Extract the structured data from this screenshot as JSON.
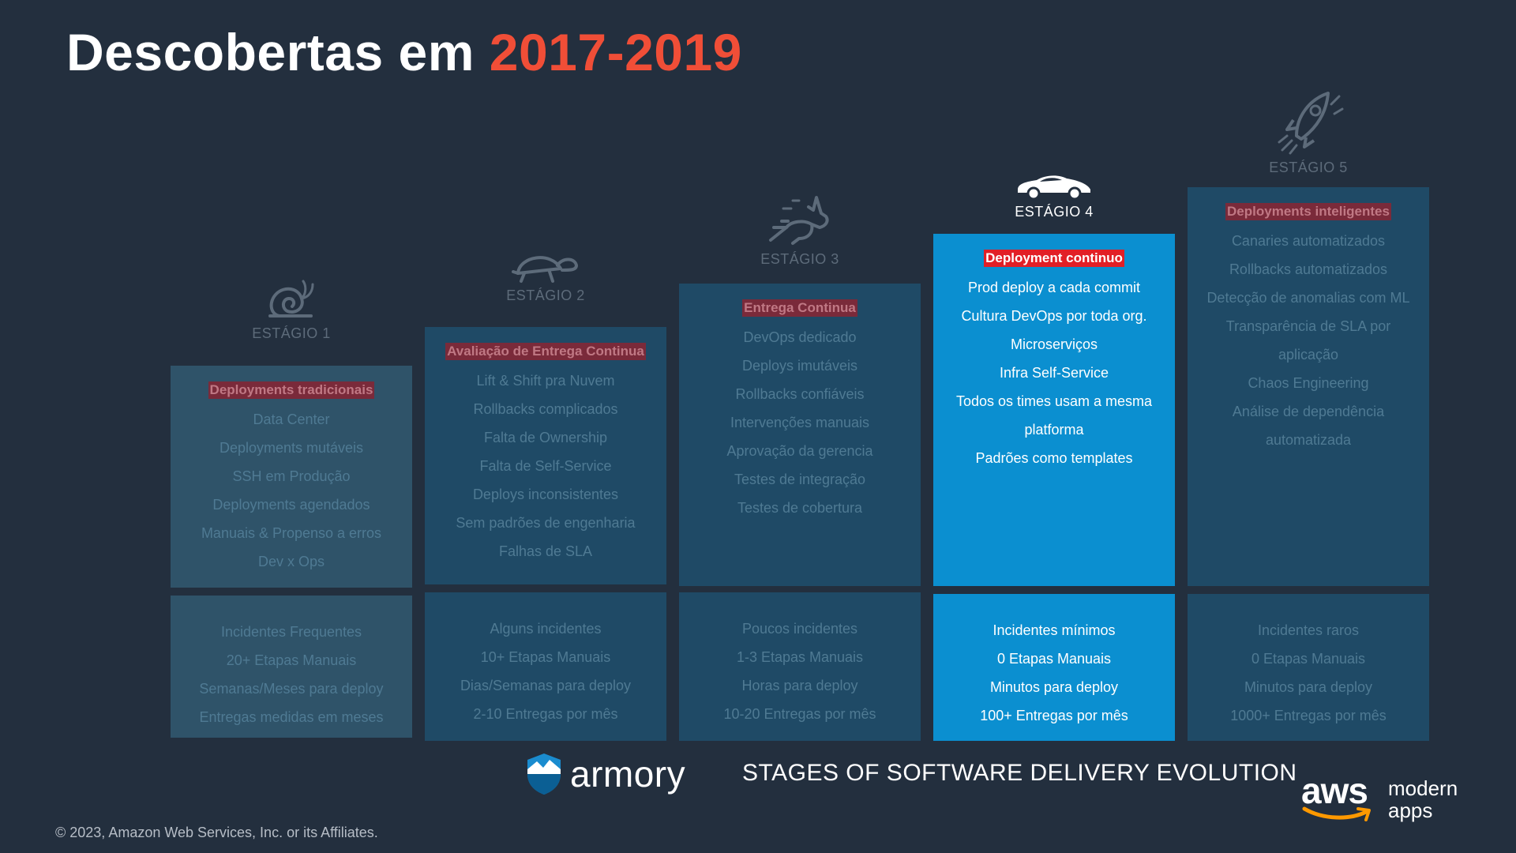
{
  "title": {
    "main": "Descobertas em",
    "accent": "2017-2019"
  },
  "colors": {
    "accent": "#f04e37",
    "active": "#0b8fd0",
    "tag_active": "#e21f26",
    "tag_dim": "#7a2a3a",
    "background": "#232f3e"
  },
  "stages": [
    {
      "name": "ESTÁGIO 1",
      "icon": "snail-icon",
      "state": "dim",
      "tag": "Deployments tradicionais",
      "items": [
        "Data Center",
        "Deployments mutáveis",
        "SSH em Produção",
        "Deployments agendados",
        "Manuais & Propenso a erros",
        "Dev x Ops"
      ],
      "metrics": [
        "Incidentes Frequentes",
        "20+ Etapas Manuais",
        "Semanas/Meses para deploy",
        "Entregas medidas em meses"
      ]
    },
    {
      "name": "ESTÁGIO 2",
      "icon": "turtle-icon",
      "state": "dim",
      "tag": "Avaliação de Entrega Continua",
      "items": [
        "Lift & Shift pra Nuvem",
        "Rollbacks complicados",
        "Falta de Ownership",
        "Falta de Self-Service",
        "Deploys inconsistentes",
        "Sem padrões de engenharia",
        "Falhas de SLA"
      ],
      "metrics": [
        "Alguns incidentes",
        "10+ Etapas Manuais",
        "Dias/Semanas para deploy",
        "2-10 Entregas por mês"
      ]
    },
    {
      "name": "ESTÁGIO 3",
      "icon": "rabbit-icon",
      "state": "dim",
      "tag": "Entrega Continua",
      "items": [
        "DevOps dedicado",
        "Deploys imutáveis",
        "Rollbacks confiáveis",
        "Intervenções manuais",
        "Aprovação da gerencia",
        "Testes de integração",
        "Testes de cobertura"
      ],
      "metrics": [
        "Poucos incidentes",
        "1-3 Etapas Manuais",
        "Horas para deploy",
        "10-20 Entregas por mês"
      ]
    },
    {
      "name": "ESTÁGIO 4",
      "icon": "car-icon",
      "state": "active",
      "tag": "Deployment continuo",
      "items": [
        "Prod deploy a cada commit",
        "Cultura DevOps por toda org.",
        "Microserviços",
        "Infra Self-Service",
        "Todos os times usam a mesma platforma",
        "Padrões como templates"
      ],
      "metrics": [
        "Incidentes mínimos",
        "0 Etapas Manuais",
        "Minutos para deploy",
        "100+ Entregas por mês"
      ]
    },
    {
      "name": "ESTÁGIO 5",
      "icon": "rocket-icon",
      "state": "dim",
      "tag": "Deployments inteligentes",
      "items": [
        "Canaries automatizados",
        "Rollbacks automatizados",
        "Detecção de anomalias com ML",
        "Transparência de SLA  por aplicação",
        "Chaos Engineering",
        "Análise de dependência automatizada"
      ],
      "metrics": [
        "Incidentes raros",
        "0 Etapas Manuais",
        "Minutos para deploy",
        "1000+ Entregas por mês"
      ]
    }
  ],
  "footer": {
    "brand": "armory",
    "tagline": "STAGES OF SOFTWARE DELIVERY EVOLUTION",
    "aws": "aws",
    "modern_line1": "modern",
    "modern_line2": "apps",
    "copyright": "© 2023, Amazon Web Services, Inc. or its Affiliates."
  }
}
